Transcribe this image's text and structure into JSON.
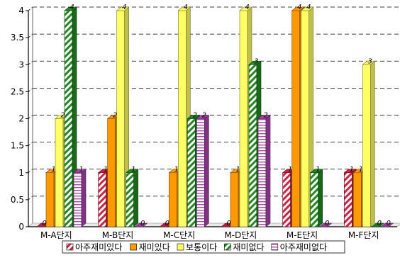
{
  "chart_data": {
    "type": "bar",
    "categories": [
      "M-A단지",
      "M-B단지",
      "M-C단지",
      "M-D단지",
      "M-E단지",
      "M-F단지"
    ],
    "series": [
      {
        "name": "아주재미있다",
        "values": [
          0,
          1,
          0,
          0,
          1,
          1
        ]
      },
      {
        "name": "재미있다",
        "values": [
          1,
          2,
          1,
          1,
          4,
          1
        ]
      },
      {
        "name": "보통이다",
        "values": [
          2,
          4,
          4,
          4,
          4,
          3
        ]
      },
      {
        "name": "재미없다",
        "values": [
          4,
          1,
          2,
          3,
          1,
          0
        ]
      },
      {
        "name": "아주재미없다",
        "values": [
          1,
          0,
          2,
          2,
          0,
          0
        ]
      }
    ],
    "yticks": [
      "0",
      "0.5",
      "1",
      "1.5",
      "2",
      "2.5",
      "3",
      "3.5",
      "4"
    ],
    "ylim": [
      0,
      4
    ],
    "grid": "horizontal dashed",
    "legend": "bottom",
    "colors": [
      "#ffffff",
      "#ff9900",
      "#ffff66",
      "#33aa33",
      "#ffffff"
    ],
    "pattern_colors": [
      "#cc2244",
      "#ff9900",
      "#ffff66",
      "#228822",
      "#aa44aa"
    ]
  }
}
